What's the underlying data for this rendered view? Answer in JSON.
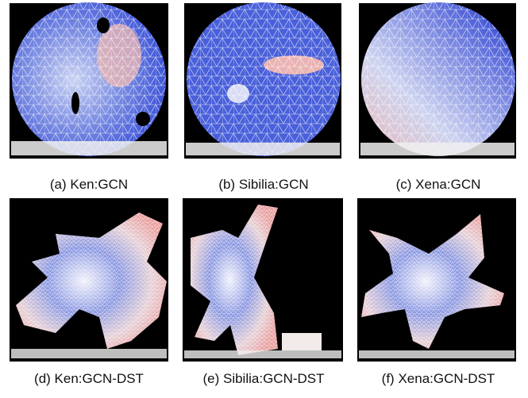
{
  "panels": [
    {
      "caption": "(a) Ken:GCN"
    },
    {
      "caption": "(b) Sibilia:GCN"
    },
    {
      "caption": "(c) Xena:GCN"
    },
    {
      "caption": "(d) Ken:GCN-DST"
    },
    {
      "caption": "(e) Sibilia:GCN-DST"
    },
    {
      "caption": "(f) Xena:GCN-DST"
    }
  ]
}
